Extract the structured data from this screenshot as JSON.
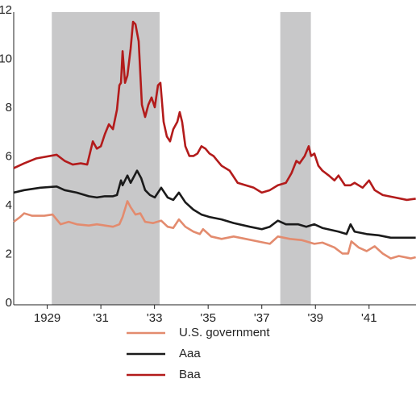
{
  "chart_data": {
    "type": "line",
    "xlim": [
      1927.75,
      1942.75
    ],
    "xticks": [
      {
        "value": 1929,
        "label": "1929"
      },
      {
        "value": 1931,
        "label": "'31"
      },
      {
        "value": 1933,
        "label": "'33"
      },
      {
        "value": 1935,
        "label": "'35"
      },
      {
        "value": 1937,
        "label": "'37"
      },
      {
        "value": 1939,
        "label": "'39"
      },
      {
        "value": 1941,
        "label": "'41"
      }
    ],
    "ylim": [
      0,
      12
    ],
    "yticks": [
      0,
      2,
      4,
      6,
      8,
      10,
      12
    ],
    "grid": false,
    "shaded_regions": [
      [
        1929.17,
        1933.19
      ],
      [
        1937.69,
        1938.83
      ]
    ],
    "shade_color": "#c8c8c9",
    "legend": "bottom",
    "series": [
      {
        "name": "U.S. government",
        "color": "#e38b6e",
        "x": [
          1927.75,
          1927.99,
          1928.14,
          1928.44,
          1928.89,
          1929.2,
          1929.5,
          1929.8,
          1930.1,
          1930.55,
          1930.85,
          1931.15,
          1931.45,
          1931.69,
          1931.81,
          1931.99,
          1932.11,
          1932.29,
          1932.47,
          1932.65,
          1932.95,
          1933.25,
          1933.49,
          1933.7,
          1933.91,
          1934.15,
          1934.45,
          1934.69,
          1934.81,
          1935.11,
          1935.5,
          1935.95,
          1936.4,
          1936.85,
          1937.3,
          1937.6,
          1938.05,
          1938.5,
          1938.96,
          1939.26,
          1939.71,
          1940.01,
          1940.22,
          1940.34,
          1940.61,
          1940.91,
          1941.21,
          1941.51,
          1941.81,
          1942.11,
          1942.56,
          1942.74
        ],
        "values": [
          3.4,
          3.6,
          3.75,
          3.65,
          3.65,
          3.7,
          3.3,
          3.4,
          3.3,
          3.25,
          3.3,
          3.25,
          3.2,
          3.3,
          3.6,
          4.25,
          4.0,
          3.7,
          3.75,
          3.4,
          3.35,
          3.45,
          3.2,
          3.15,
          3.5,
          3.2,
          3.0,
          2.9,
          3.1,
          2.8,
          2.7,
          2.8,
          2.7,
          2.6,
          2.5,
          2.8,
          2.7,
          2.65,
          2.5,
          2.55,
          2.35,
          2.1,
          2.1,
          2.6,
          2.35,
          2.2,
          2.4,
          2.1,
          1.9,
          2.0,
          1.9,
          1.95
        ]
      },
      {
        "name": "Aaa",
        "color": "#1a1a1a",
        "x": [
          1927.75,
          1928.14,
          1928.74,
          1929.35,
          1929.65,
          1930.1,
          1930.55,
          1930.85,
          1931.15,
          1931.45,
          1931.6,
          1931.75,
          1931.81,
          1931.99,
          1932.11,
          1932.35,
          1932.5,
          1932.65,
          1932.83,
          1933.01,
          1933.25,
          1933.49,
          1933.7,
          1933.91,
          1934.15,
          1934.45,
          1934.75,
          1935.05,
          1935.5,
          1935.95,
          1936.55,
          1937.0,
          1937.3,
          1937.6,
          1937.9,
          1938.35,
          1938.66,
          1938.96,
          1939.26,
          1939.86,
          1940.16,
          1940.31,
          1940.46,
          1940.91,
          1941.36,
          1941.81,
          1942.26,
          1942.74
        ],
        "values": [
          4.6,
          4.7,
          4.8,
          4.85,
          4.7,
          4.6,
          4.45,
          4.4,
          4.45,
          4.45,
          4.5,
          5.1,
          4.9,
          5.3,
          5.0,
          5.5,
          5.2,
          4.7,
          4.5,
          4.4,
          4.8,
          4.4,
          4.3,
          4.6,
          4.2,
          3.9,
          3.7,
          3.6,
          3.5,
          3.35,
          3.2,
          3.1,
          3.2,
          3.45,
          3.3,
          3.3,
          3.2,
          3.3,
          3.15,
          3.0,
          2.9,
          3.3,
          3.0,
          2.9,
          2.85,
          2.75,
          2.75,
          2.75
        ]
      },
      {
        "name": "Baa",
        "color": "#b31b1b",
        "x": [
          1927.75,
          1928.14,
          1928.59,
          1929.35,
          1929.65,
          1929.95,
          1930.25,
          1930.49,
          1930.7,
          1930.85,
          1931.0,
          1931.15,
          1931.3,
          1931.45,
          1931.6,
          1931.69,
          1931.75,
          1931.81,
          1931.9,
          1931.99,
          1932.11,
          1932.2,
          1932.29,
          1932.41,
          1932.53,
          1932.65,
          1932.77,
          1932.89,
          1933.01,
          1933.13,
          1933.22,
          1933.34,
          1933.46,
          1933.58,
          1933.7,
          1933.85,
          1933.94,
          1934.03,
          1934.15,
          1934.3,
          1934.45,
          1934.6,
          1934.75,
          1934.9,
          1935.05,
          1935.2,
          1935.35,
          1935.5,
          1935.8,
          1936.1,
          1936.4,
          1936.7,
          1937.0,
          1937.3,
          1937.6,
          1937.9,
          1938.11,
          1938.29,
          1938.41,
          1938.6,
          1938.75,
          1938.84,
          1938.96,
          1939.11,
          1939.26,
          1939.5,
          1939.71,
          1939.86,
          1940.1,
          1940.31,
          1940.46,
          1940.76,
          1941.0,
          1941.21,
          1941.51,
          1941.96,
          1942.41,
          1942.74
        ],
        "values": [
          5.6,
          5.8,
          6.0,
          6.15,
          5.9,
          5.75,
          5.8,
          5.75,
          6.7,
          6.4,
          6.5,
          7.0,
          7.4,
          7.2,
          8.0,
          9.0,
          9.1,
          10.4,
          9.1,
          9.4,
          10.5,
          11.6,
          11.5,
          10.8,
          8.2,
          7.7,
          8.2,
          8.5,
          8.1,
          9.0,
          9.1,
          7.5,
          6.9,
          6.7,
          7.2,
          7.5,
          7.9,
          7.5,
          6.5,
          6.1,
          6.1,
          6.2,
          6.5,
          6.4,
          6.2,
          6.1,
          5.9,
          5.7,
          5.5,
          5.0,
          4.9,
          4.8,
          4.6,
          4.7,
          4.9,
          5.0,
          5.4,
          5.9,
          5.8,
          6.1,
          6.5,
          6.1,
          6.2,
          5.7,
          5.5,
          5.3,
          5.1,
          5.3,
          4.9,
          4.9,
          5.0,
          4.8,
          5.1,
          4.7,
          4.5,
          4.4,
          4.3,
          4.35
        ]
      }
    ]
  }
}
